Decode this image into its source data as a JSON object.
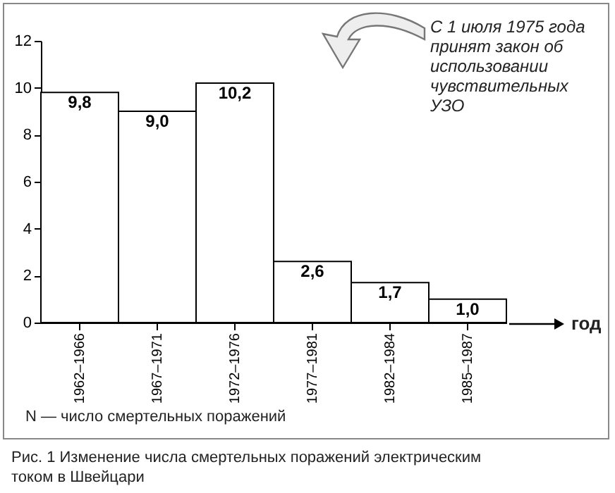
{
  "chart_data": {
    "type": "bar",
    "categories": [
      "1962–1966",
      "1967–1971",
      "1972–1976",
      "1977–1981",
      "1982–1984",
      "1985–1987"
    ],
    "values": [
      9.8,
      9.0,
      10.2,
      2.6,
      1.7,
      1.0
    ],
    "value_labels": [
      "9,8",
      "9,0",
      "10,2",
      "2,6",
      "1,7",
      "1,0"
    ],
    "color": "#ffffff",
    "xlabel": "год",
    "ylim": [
      0,
      12
    ],
    "yticks": [
      0,
      2,
      4,
      6,
      8,
      10,
      12
    ],
    "grid": false,
    "annotations": [
      "С 1 июля 1975 года принят закон об использовании чувствительных УЗО",
      "N — число смертельных поражений",
      "Рис. 1   Изменение числа смертельных поражений электрическим током в Швейцари"
    ]
  }
}
